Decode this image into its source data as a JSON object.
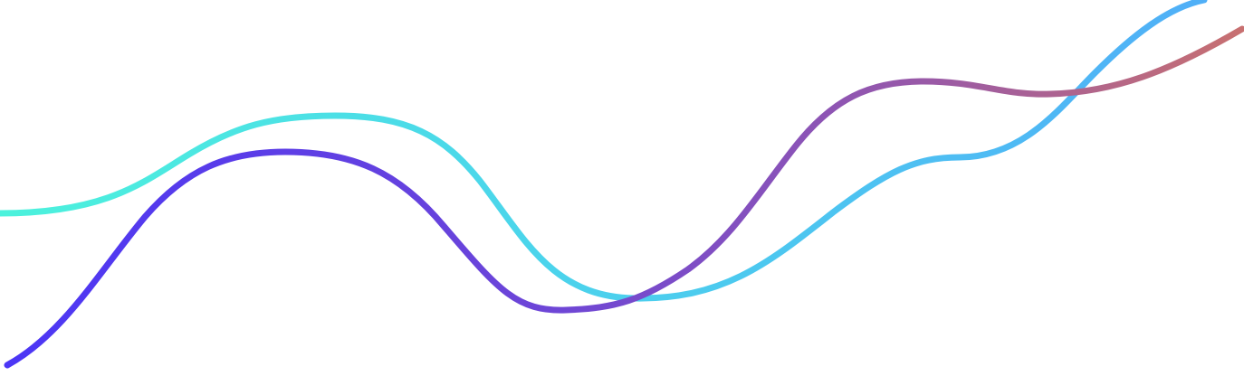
{
  "artwork": {
    "description": "",
    "background_color": "#ffffff",
    "waves": [
      {
        "id": "wave-cyan",
        "gradient_colors": [
          "#4cf2dc",
          "#4bd3ec",
          "#50adf8"
        ]
      },
      {
        "id": "wave-violet",
        "gradient_colors": [
          "#4b36f6",
          "#6e46d6",
          "#9a5aa6",
          "#c87070"
        ]
      }
    ]
  }
}
